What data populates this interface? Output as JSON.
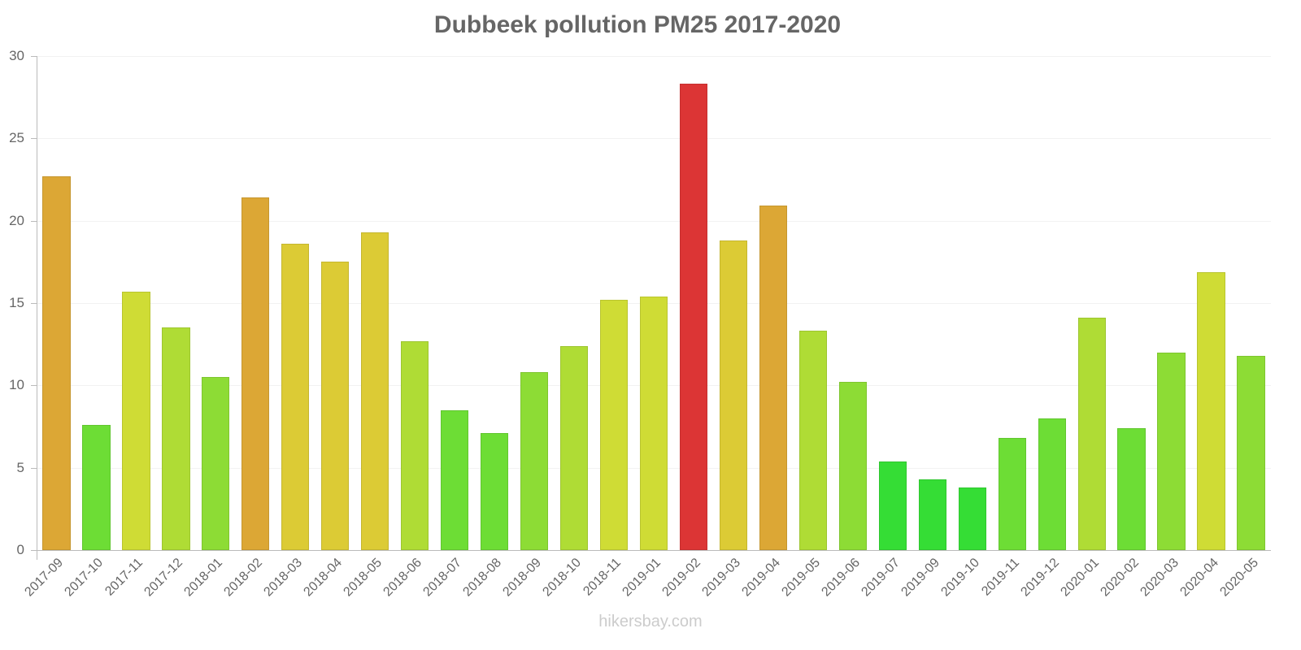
{
  "chart_data": {
    "type": "bar",
    "title": "Dubbeek pollution PM25 2017-2020",
    "xlabel": "",
    "ylabel": "",
    "ylim": [
      0,
      30
    ],
    "yticks": [
      0,
      5,
      10,
      15,
      20,
      25,
      30
    ],
    "grid": true,
    "legend": null,
    "categories": [
      "2017-09",
      "2017-10",
      "2017-11",
      "2017-12",
      "2018-01",
      "2018-02",
      "2018-03",
      "2018-04",
      "2018-05",
      "2018-06",
      "2018-07",
      "2018-08",
      "2018-09",
      "2018-10",
      "2018-11",
      "2019-01",
      "2019-02",
      "2019-03",
      "2019-04",
      "2019-05",
      "2019-06",
      "2019-07",
      "2019-09",
      "2019-10",
      "2019-11",
      "2019-12",
      "2020-01",
      "2020-02",
      "2020-03",
      "2020-04",
      "2020-05"
    ],
    "values": [
      22.7,
      7.6,
      15.7,
      13.5,
      10.5,
      21.4,
      18.6,
      17.5,
      19.3,
      12.7,
      8.5,
      7.1,
      10.8,
      12.4,
      15.2,
      15.4,
      28.3,
      18.8,
      20.9,
      13.3,
      10.2,
      5.4,
      4.3,
      3.8,
      6.8,
      8.0,
      14.1,
      7.4,
      12.0,
      16.9,
      11.8
    ],
    "colors": [
      "#dca735",
      "#6ddd35",
      "#cfdc35",
      "#afdc35",
      "#8ddc35",
      "#dca735",
      "#dccb35",
      "#dccb35",
      "#dccb35",
      "#afdc35",
      "#6ddd35",
      "#6ddd35",
      "#8ddc35",
      "#afdc35",
      "#cfdc35",
      "#cfdc35",
      "#dc3535",
      "#dccb35",
      "#dca735",
      "#afdc35",
      "#8ddc35",
      "#35dd35",
      "#35dd35",
      "#35dd35",
      "#6ddd35",
      "#6ddd35",
      "#afdc35",
      "#6ddd35",
      "#8ddc35",
      "#cfdc35",
      "#8ddc35"
    ]
  },
  "watermark": "hikersbay.com"
}
